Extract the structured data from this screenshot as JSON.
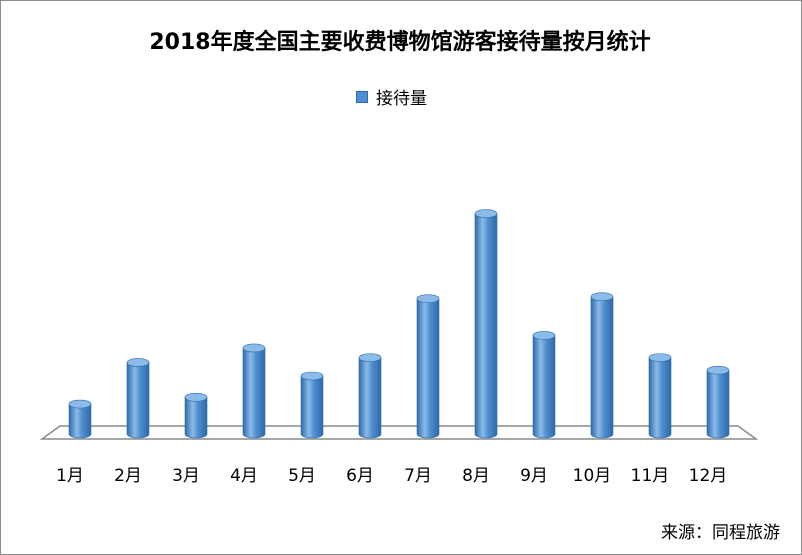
{
  "chart_data": {
    "type": "bar",
    "title": "2018年度全国主要收费博物馆游客接待量按月统计",
    "categories": [
      "1月",
      "2月",
      "3月",
      "4月",
      "5月",
      "6月",
      "7月",
      "8月",
      "9月",
      "10月",
      "11月",
      "12月"
    ],
    "series": [
      {
        "name": "接待量",
        "values": [
          31,
          74,
          38,
          89,
          60,
          79,
          140,
          228,
          102,
          142,
          79,
          66
        ]
      }
    ],
    "ylim": [
      0,
      240
    ],
    "legend": "top-center",
    "grid": false,
    "colors": {
      "bar": "#4f8ed0",
      "bar_dark": "#2f6aa8",
      "bar_light": "#8bbbe8"
    }
  },
  "source": "来源：同程旅游"
}
